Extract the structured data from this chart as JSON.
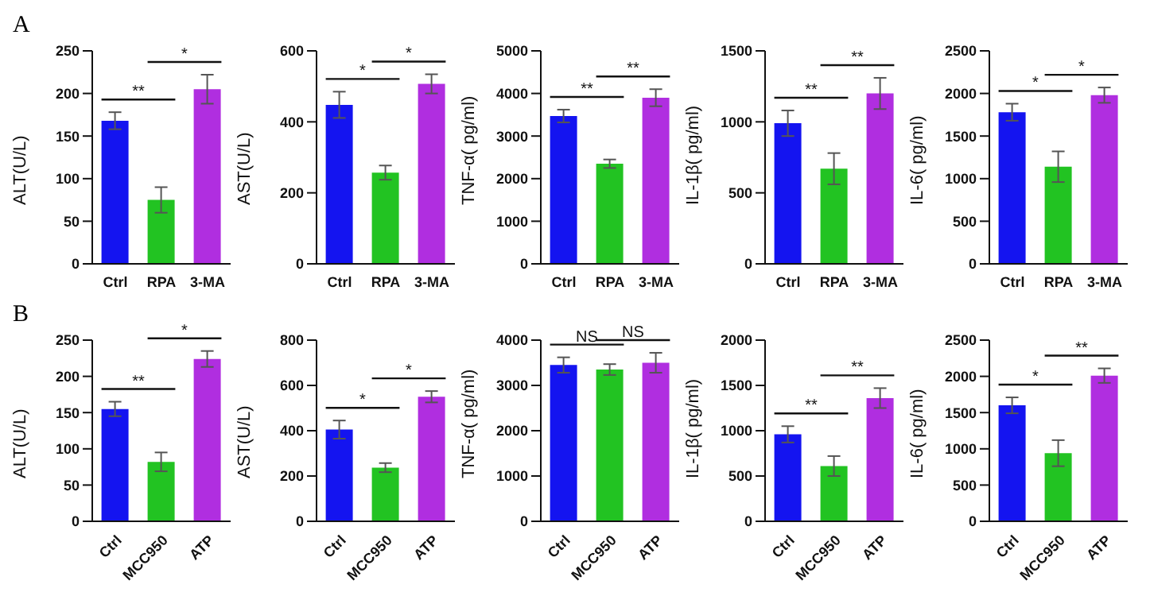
{
  "chart_data": [
    {
      "type": "bar",
      "title": "A",
      "ylabel": "ALT(U/L)",
      "categories": [
        "Ctrl",
        "RPA",
        "3-MA"
      ],
      "values": [
        168,
        75,
        205
      ],
      "errors": [
        10,
        15,
        17
      ],
      "colors": [
        "#1414f0",
        "#22c322",
        "#b02ee0"
      ],
      "ylim": [
        0,
        250
      ],
      "yticks": [
        0,
        50,
        100,
        150,
        200,
        250
      ],
      "annotations": [
        "**",
        "*"
      ]
    },
    {
      "type": "bar",
      "ylabel": "AST(U/L)",
      "categories": [
        "Ctrl",
        "RPA",
        "3-MA"
      ],
      "values": [
        448,
        257,
        507
      ],
      "errors": [
        37,
        20,
        27
      ],
      "colors": [
        "#1414f0",
        "#22c322",
        "#b02ee0"
      ],
      "ylim": [
        0,
        600
      ],
      "yticks": [
        0,
        200,
        400,
        600
      ],
      "annotations": [
        "*",
        "*"
      ]
    },
    {
      "type": "bar",
      "ylabel": "TNF-α( pg/ml)",
      "categories": [
        "Ctrl",
        "RPA",
        "3-MA"
      ],
      "values": [
        3470,
        2350,
        3900
      ],
      "errors": [
        150,
        100,
        200
      ],
      "colors": [
        "#1414f0",
        "#22c322",
        "#b02ee0"
      ],
      "ylim": [
        0,
        5000
      ],
      "yticks": [
        0,
        1000,
        2000,
        3000,
        4000,
        5000
      ],
      "annotations": [
        "**",
        "**"
      ]
    },
    {
      "type": "bar",
      "ylabel": "IL-1β( pg/ml)",
      "categories": [
        "Ctrl",
        "RPA",
        "3-MA"
      ],
      "values": [
        990,
        670,
        1200
      ],
      "errors": [
        90,
        110,
        110
      ],
      "colors": [
        "#1414f0",
        "#22c322",
        "#b02ee0"
      ],
      "ylim": [
        0,
        1500
      ],
      "yticks": [
        0,
        500,
        1000,
        1500
      ],
      "annotations": [
        "**",
        "**"
      ]
    },
    {
      "type": "bar",
      "ylabel": "IL-6( pg/ml)",
      "categories": [
        "Ctrl",
        "RPA",
        "3-MA"
      ],
      "values": [
        1780,
        1140,
        1980
      ],
      "errors": [
        100,
        180,
        90
      ],
      "colors": [
        "#1414f0",
        "#22c322",
        "#b02ee0"
      ],
      "ylim": [
        0,
        2500
      ],
      "yticks": [
        0,
        500,
        1000,
        1500,
        2000,
        2500
      ],
      "annotations": [
        "*",
        "*"
      ]
    },
    {
      "type": "bar",
      "title": "B",
      "ylabel": "ALT(U/L)",
      "categories": [
        "Ctrl",
        "MCC950",
        "ATP"
      ],
      "values": [
        155,
        82,
        224
      ],
      "errors": [
        10,
        13,
        11
      ],
      "colors": [
        "#1414f0",
        "#22c322",
        "#b02ee0"
      ],
      "ylim": [
        0,
        250
      ],
      "yticks": [
        0,
        50,
        100,
        150,
        200,
        250
      ],
      "annotations": [
        "**",
        "*"
      ]
    },
    {
      "type": "bar",
      "ylabel": "AST(U/L)",
      "categories": [
        "Ctrl",
        "MCC950",
        "ATP"
      ],
      "values": [
        405,
        237,
        550
      ],
      "errors": [
        40,
        20,
        25
      ],
      "colors": [
        "#1414f0",
        "#22c322",
        "#b02ee0"
      ],
      "ylim": [
        0,
        800
      ],
      "yticks": [
        0,
        200,
        400,
        600,
        800
      ],
      "annotations": [
        "*",
        "*"
      ]
    },
    {
      "type": "bar",
      "ylabel": "TNF-α( pg/ml)",
      "categories": [
        "Ctrl",
        "MCC950",
        "ATP"
      ],
      "values": [
        3450,
        3350,
        3500
      ],
      "errors": [
        170,
        120,
        220
      ],
      "colors": [
        "#1414f0",
        "#22c322",
        "#b02ee0"
      ],
      "ylim": [
        0,
        4000
      ],
      "yticks": [
        0,
        1000,
        2000,
        3000,
        4000
      ],
      "annotations": [
        "NS",
        "NS"
      ]
    },
    {
      "type": "bar",
      "ylabel": "IL-1β( pg/ml)",
      "categories": [
        "Ctrl",
        "MCC950",
        "ATP"
      ],
      "values": [
        960,
        610,
        1360
      ],
      "errors": [
        90,
        110,
        110
      ],
      "colors": [
        "#1414f0",
        "#22c322",
        "#b02ee0"
      ],
      "ylim": [
        0,
        2000
      ],
      "yticks": [
        0,
        500,
        1000,
        1500,
        2000
      ],
      "annotations": [
        "**",
        "**"
      ]
    },
    {
      "type": "bar",
      "ylabel": "IL-6( pg/ml)",
      "categories": [
        "Ctrl",
        "MCC950",
        "ATP"
      ],
      "values": [
        1600,
        940,
        2010
      ],
      "errors": [
        110,
        180,
        100
      ],
      "colors": [
        "#1414f0",
        "#22c322",
        "#b02ee0"
      ],
      "ylim": [
        0,
        2500
      ],
      "yticks": [
        0,
        500,
        1000,
        1500,
        2000,
        2500
      ],
      "annotations": [
        "*",
        "**"
      ]
    }
  ]
}
